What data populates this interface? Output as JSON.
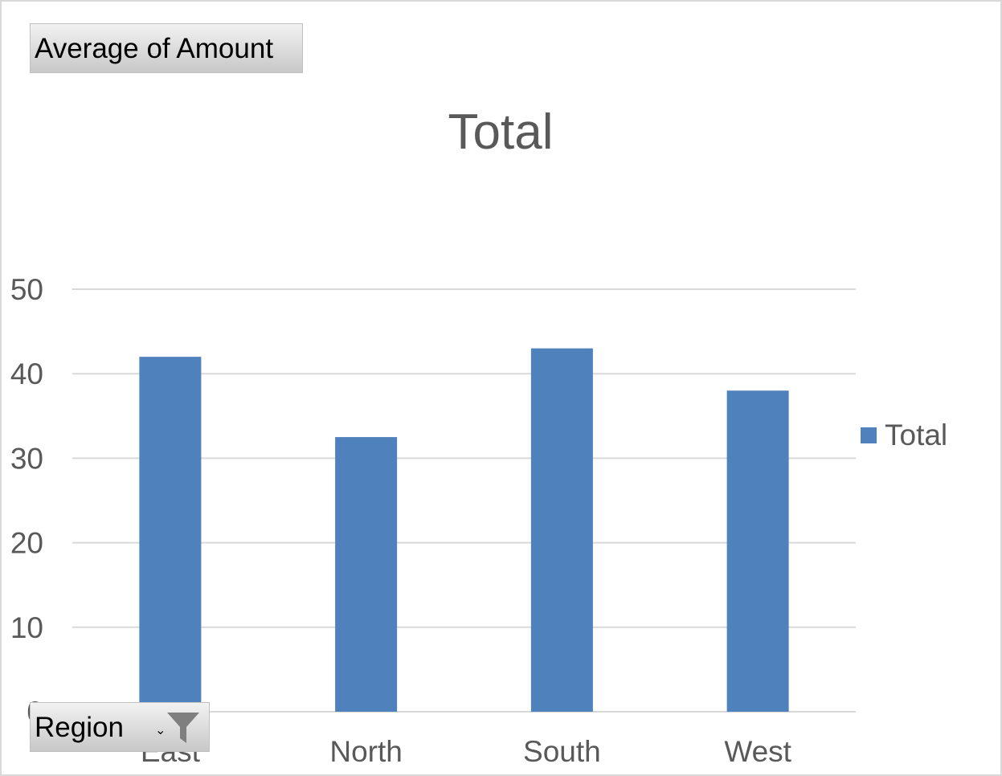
{
  "chart_data": {
    "type": "bar",
    "title": "Total",
    "categories": [
      "East",
      "North",
      "South",
      "West"
    ],
    "series": [
      {
        "name": "Total",
        "values": [
          42,
          32.5,
          43,
          38
        ],
        "color": "#4f81bd"
      }
    ],
    "ylim": [
      0,
      50
    ],
    "yticks": [
      "0",
      "10",
      "20",
      "30",
      "40",
      "50"
    ],
    "grid": true,
    "legend_position": "right",
    "gridline_color": "#d9d9d9",
    "text_color": "#595959"
  },
  "pivot": {
    "value_field_label": "Average  of Amount",
    "axis_field_label": "Region",
    "dropdown_icon": "dropdown-arrow-icon",
    "filter_icon": "filter-icon"
  }
}
